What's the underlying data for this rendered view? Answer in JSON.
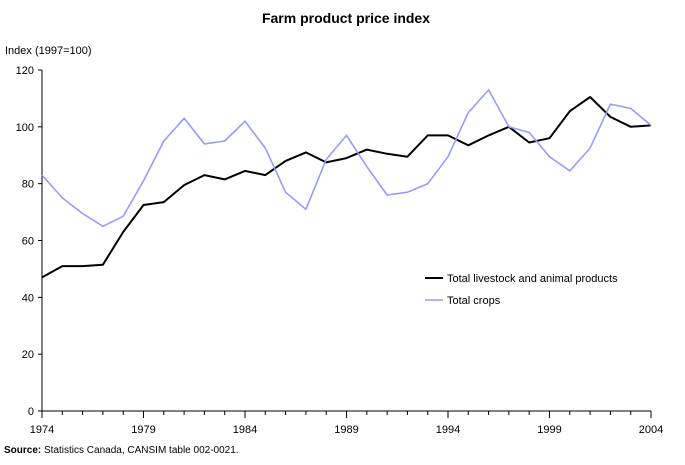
{
  "chart_data": {
    "type": "line",
    "title": "Farm product price index",
    "ylabel": "Index (1997=100)",
    "xlabel": "",
    "ylim": [
      0,
      120
    ],
    "yticks": [
      0,
      20,
      40,
      60,
      80,
      100,
      120
    ],
    "xlim": [
      1974,
      2004
    ],
    "xticks": [
      1974,
      1979,
      1984,
      1989,
      1994,
      1999,
      2004
    ],
    "grid": false,
    "legend": "right",
    "x": [
      1974,
      1975,
      1976,
      1977,
      1978,
      1979,
      1980,
      1981,
      1982,
      1983,
      1984,
      1985,
      1986,
      1987,
      1988,
      1989,
      1990,
      1991,
      1992,
      1993,
      1994,
      1995,
      1996,
      1997,
      1998,
      1999,
      2000,
      2001,
      2002,
      2003,
      2004
    ],
    "series": [
      {
        "name": "Total livestock and animal products",
        "color": "#000000",
        "values": [
          47,
          51,
          51,
          51.5,
          63,
          72.5,
          73.5,
          79.5,
          83,
          81.5,
          84.5,
          83,
          88,
          91,
          87.5,
          89,
          92,
          90.5,
          89.5,
          97,
          97,
          93.5,
          97,
          100,
          94.5,
          96,
          105.5,
          110.5,
          103.5,
          100,
          100.5
        ]
      },
      {
        "name": "Total crops",
        "color": "#9999ff",
        "values": [
          83,
          75,
          69.5,
          65,
          68.5,
          81,
          95,
          103,
          94,
          95,
          102,
          92.5,
          77,
          71,
          88.5,
          97,
          86,
          76,
          77,
          80,
          89.5,
          105,
          113,
          100,
          98,
          89.5,
          84.5,
          92.5,
          108,
          106.5,
          100.5
        ]
      }
    ]
  },
  "source": {
    "label": "Source:",
    "text": " Statistics Canada, CANSIM table 002-0021."
  }
}
